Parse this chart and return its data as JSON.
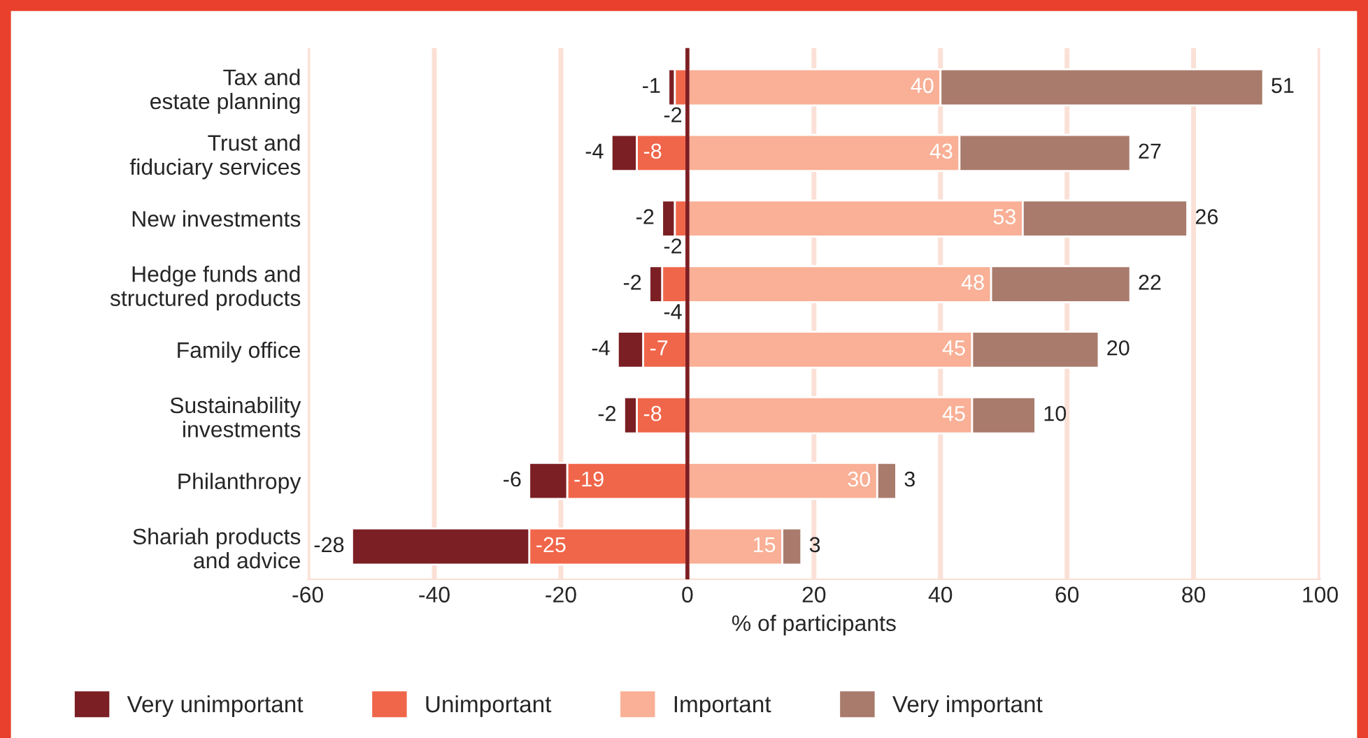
{
  "chart_data": {
    "type": "bar",
    "orientation": "horizontal",
    "stacked": true,
    "data_labels": true,
    "categories": [
      "Tax and\nestate planning",
      "Trust and\nfiduciary services",
      "New investments",
      "Hedge funds and\nstructured products",
      "Family office",
      "Sustainability\ninvestments",
      "Philanthropy",
      "Shariah products\nand advice"
    ],
    "series": [
      {
        "name": "Very unimportant",
        "color": "#7b1f24",
        "values": [
          -1,
          -4,
          -2,
          -2,
          -4,
          -2,
          -6,
          -28
        ]
      },
      {
        "name": "Unimportant",
        "color": "#f0664a",
        "values": [
          -2,
          -8,
          -2,
          -4,
          -7,
          -8,
          -19,
          -25
        ]
      },
      {
        "name": "Important",
        "color": "#f9b096",
        "values": [
          40,
          43,
          53,
          48,
          45,
          45,
          30,
          15
        ]
      },
      {
        "name": "Very important",
        "color": "#a97b6c",
        "values": [
          51,
          27,
          26,
          22,
          20,
          10,
          3,
          3
        ]
      }
    ],
    "xlim": [
      -60,
      100
    ],
    "xticks": [
      -60,
      -40,
      -20,
      0,
      20,
      40,
      60,
      80,
      100
    ],
    "xlabel": "% of participants",
    "grid": "x",
    "legend": "bottom",
    "ref_lines": [
      {
        "axis": "x",
        "value": 0,
        "color": "#7b1f24"
      }
    ]
  }
}
